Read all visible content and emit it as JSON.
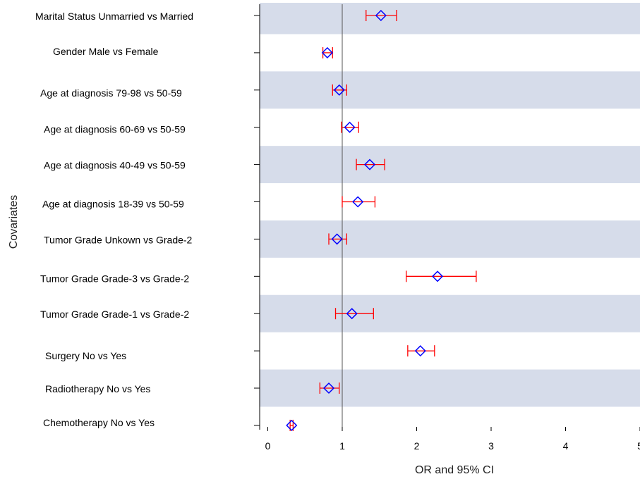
{
  "chart_data": {
    "type": "forest",
    "title": "",
    "ylabel": "Covariates",
    "xlabel": "OR and 95% CI",
    "xlim": [
      0,
      5
    ],
    "xticks": [
      0,
      1,
      2,
      3,
      4,
      5
    ],
    "xtick_labels": [
      "0",
      "1",
      "2",
      "3",
      "4",
      "5"
    ],
    "reference_line_x": 1,
    "band_color": "#d6dcea",
    "marker_color": "#0000ff",
    "ci_color": "#ff0000",
    "marker_shape": "diamond",
    "rows": [
      {
        "label": "Marital Status Unmarried vs Married",
        "or": 1.52,
        "lower": 1.32,
        "upper": 1.73
      },
      {
        "label": "Gender        Male vs Female",
        "or": 0.8,
        "lower": 0.74,
        "upper": 0.87
      },
      {
        "label": "Age at diagnosis 79-98 vs 50-59",
        "or": 0.96,
        "lower": 0.87,
        "upper": 1.06
      },
      {
        "label": "Age at diagnosis 60-69 vs 50-59",
        "or": 1.1,
        "lower": 0.99,
        "upper": 1.22
      },
      {
        "label": "Age at diagnosis 40-49 vs 50-59",
        "or": 1.37,
        "lower": 1.19,
        "upper": 1.57
      },
      {
        "label": "Age at diagnosis 18-39 vs 50-59",
        "or": 1.21,
        "lower": 1.0,
        "upper": 1.44
      },
      {
        "label": "Tumor Grade Unkown vs Grade-2",
        "or": 0.93,
        "lower": 0.82,
        "upper": 1.06
      },
      {
        "label": "Tumor Grade Grade-3 vs Grade-2",
        "or": 2.28,
        "lower": 1.86,
        "upper": 2.8
      },
      {
        "label": "Tumor Grade Grade-1 vs Grade-2",
        "or": 1.13,
        "lower": 0.91,
        "upper": 1.42
      },
      {
        "label": "Surgery No vs Yes",
        "or": 2.05,
        "lower": 1.88,
        "upper": 2.24
      },
      {
        "label": "Radiotherapy No vs Yes",
        "or": 0.82,
        "lower": 0.7,
        "upper": 0.96
      },
      {
        "label": "Chemotherapy No vs Yes",
        "or": 0.32,
        "lower": 0.3,
        "upper": 0.34
      }
    ]
  }
}
